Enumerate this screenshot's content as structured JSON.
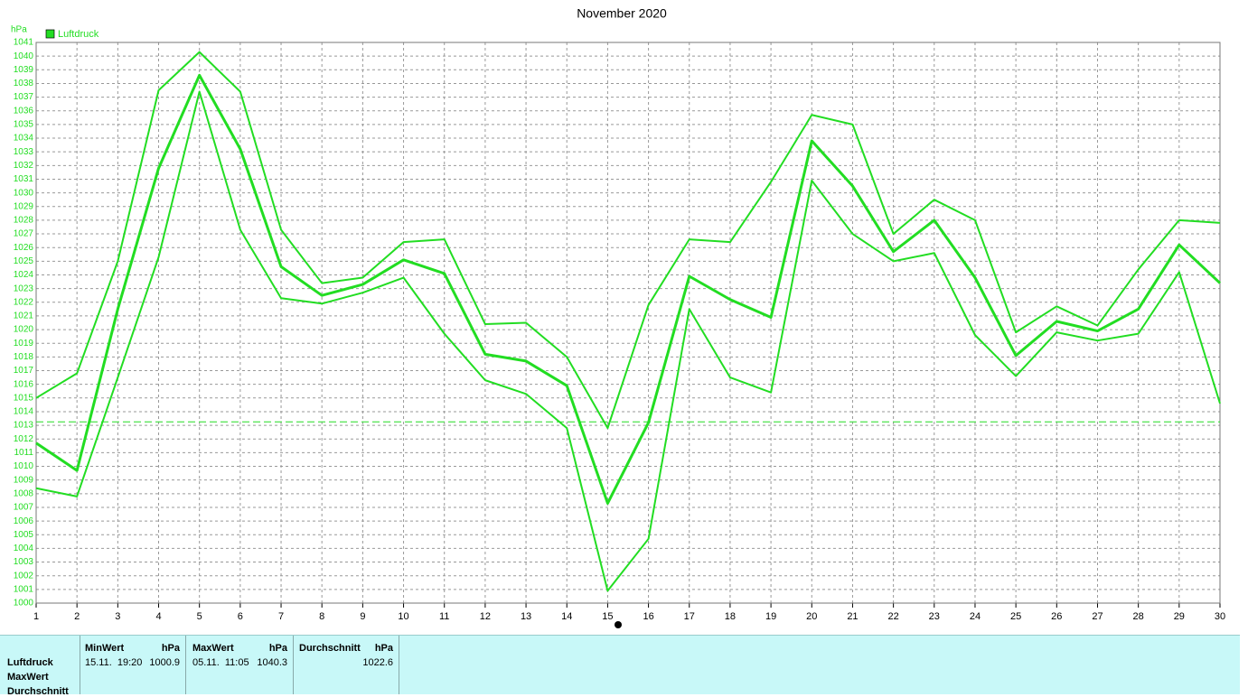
{
  "chart_data": {
    "type": "line",
    "title": "November 2020",
    "y_unit": "hPa",
    "x": [
      1,
      2,
      3,
      4,
      5,
      6,
      7,
      8,
      9,
      10,
      11,
      12,
      13,
      14,
      15,
      16,
      17,
      18,
      19,
      20,
      21,
      22,
      23,
      24,
      25,
      26,
      27,
      28,
      29,
      30
    ],
    "xlim": [
      1,
      30
    ],
    "xticks": [
      1,
      2,
      3,
      4,
      5,
      6,
      7,
      8,
      9,
      10,
      11,
      12,
      13,
      14,
      15,
      16,
      17,
      18,
      19,
      20,
      21,
      22,
      23,
      24,
      25,
      26,
      27,
      28,
      29,
      30
    ],
    "ylim": [
      1000,
      1041
    ],
    "yticks": [
      1000,
      1001,
      1002,
      1003,
      1004,
      1005,
      1006,
      1007,
      1008,
      1009,
      1010,
      1011,
      1012,
      1013,
      1014,
      1015,
      1016,
      1017,
      1018,
      1019,
      1020,
      1021,
      1022,
      1023,
      1024,
      1025,
      1026,
      1027,
      1028,
      1029,
      1030,
      1031,
      1032,
      1033,
      1034,
      1035,
      1036,
      1037,
      1038,
      1039,
      1040,
      1041
    ],
    "grid": true,
    "reference_line": 1013.25,
    "series": [
      {
        "name": "Luftdruck",
        "color": "#22dd22",
        "width": 3,
        "values": [
          1011.7,
          1009.7,
          1021.5,
          1031.8,
          1038.6,
          1033.2,
          1024.6,
          1022.5,
          1023.3,
          1025.1,
          1024.1,
          1018.2,
          1017.7,
          1015.9,
          1007.3,
          1013.2,
          1023.9,
          1022.2,
          1020.9,
          1033.8,
          1030.5,
          1025.7,
          1028,
          1023.8,
          1018.1,
          1020.6,
          1019.9,
          1021.5,
          1026.2,
          1023.4
        ]
      },
      {
        "color": "#22dd22",
        "width": 2,
        "values": [
          1015,
          1016.8,
          1025,
          1037.5,
          1040.3,
          1037.4,
          1027.3,
          1023.4,
          1023.8,
          1026.4,
          1026.6,
          1020.4,
          1020.5,
          1018,
          1012.8,
          1021.8,
          1026.6,
          1026.4,
          1030.8,
          1035.7,
          1035,
          1027,
          1029.5,
          1028,
          1019.8,
          1021.7,
          1020.3,
          1024.4,
          1028,
          1027.8
        ]
      },
      {
        "color": "#22dd22",
        "width": 2,
        "values": [
          1008.4,
          1007.8,
          1016.5,
          1025.3,
          1037.4,
          1027.3,
          1022.3,
          1021.9,
          1022.7,
          1023.8,
          1019.7,
          1016.3,
          1015.3,
          1012.8,
          1000.9,
          1004.7,
          1021.5,
          1016.5,
          1015.4,
          1030.9,
          1027,
          1025,
          1025.6,
          1019.6,
          1016.6,
          1019.8,
          1019.2,
          1019.7,
          1024.2,
          1014.6
        ]
      }
    ]
  },
  "table": {
    "headers": [
      [
        "MinWert",
        "hPa"
      ],
      [
        "MaxWert",
        "hPa"
      ],
      [
        "Durchschnitt",
        "hPa"
      ]
    ],
    "row_labels": [
      "Luftdruck",
      "MaxWert",
      "Durchschnitt"
    ],
    "cells": [
      [
        "15.11.  19:20",
        "1000.9"
      ],
      [
        "05.11.  11:05",
        "1040.3"
      ],
      [
        "1022.6"
      ]
    ]
  }
}
